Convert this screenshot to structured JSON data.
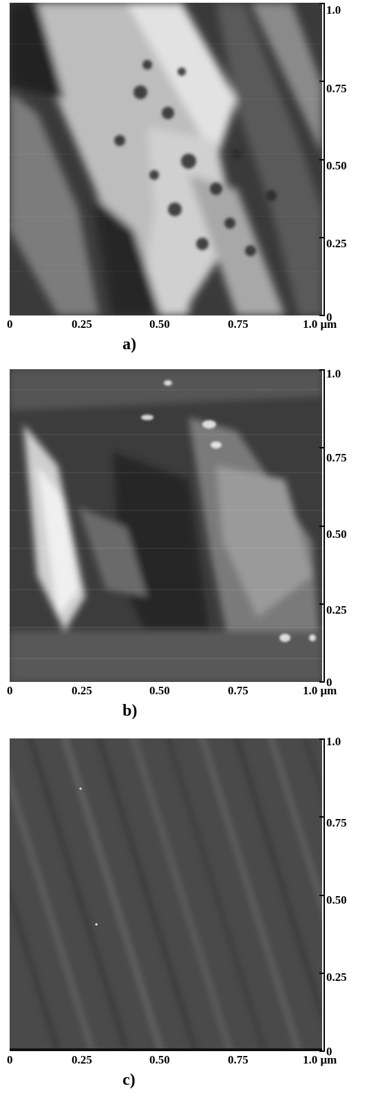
{
  "panels": [
    {
      "label": "a)",
      "x_ticks": [
        "0",
        "0.25",
        "0.50",
        "0.75",
        "1.0 μm"
      ],
      "y_ticks": [
        "1.0",
        "0.75",
        "0.50",
        "0.25",
        "0"
      ]
    },
    {
      "label": "b)",
      "x_ticks": [
        "0",
        "0.25",
        "0.50",
        "0.75",
        "1.0 μm"
      ],
      "y_ticks": [
        "1.0",
        "0.75",
        "0.50",
        "0.25",
        "0"
      ]
    },
    {
      "label": "c)",
      "x_ticks": [
        "0",
        "0.25",
        "0.50",
        "0.75",
        "1.0 μm"
      ],
      "y_ticks": [
        "1.0",
        "0.75",
        "0.50",
        "0.25",
        "0"
      ]
    }
  ]
}
